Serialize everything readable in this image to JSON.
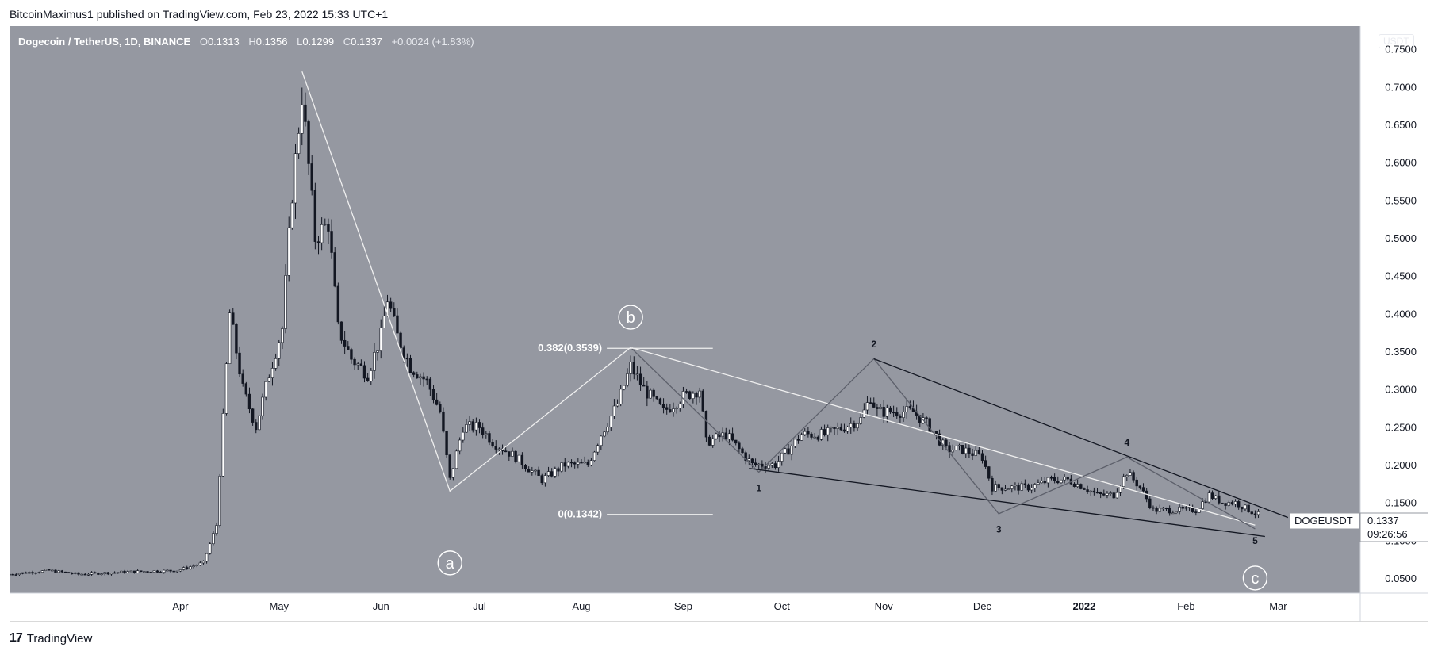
{
  "header": {
    "published_by": "BitcoinMaximus1 published on TradingView.com, Feb 23, 2022 15:33 UTC+1"
  },
  "legend": {
    "symbol": "Dogecoin / TetherUS, 1D, BINANCE",
    "open_label": "O",
    "open": "0.1313",
    "high_label": "H",
    "high": "0.1356",
    "low_label": "L",
    "low": "0.1299",
    "close_label": "C",
    "close": "0.1337",
    "change": "+0.0024 (+1.83%)"
  },
  "currency_badge": "USDT",
  "price_tag": {
    "symbol": "DOGEUSDT",
    "price": "0.1337",
    "countdown": "09:26:56"
  },
  "branding": {
    "logo_text": "17",
    "name": "TradingView"
  },
  "colors": {
    "background": "#9598a1",
    "candle": "#131722",
    "white_line": "#f0f0f0",
    "black_line": "#131722",
    "grey_line": "#5d606b"
  },
  "chart_data": {
    "type": "candlestick",
    "title": "Dogecoin / TetherUS, 1D, BINANCE",
    "x_tick_labels": [
      "Apr",
      "May",
      "Jun",
      "Jul",
      "Aug",
      "Sep",
      "Oct",
      "Nov",
      "Dec",
      "2022",
      "Feb",
      "Mar"
    ],
    "y_tick_labels": [
      "0.7500",
      "0.7000",
      "0.6500",
      "0.6000",
      "0.5500",
      "0.5000",
      "0.4500",
      "0.4000",
      "0.3500",
      "0.3000",
      "0.2500",
      "0.2000",
      "0.1500",
      "0.1000",
      "0.0500"
    ],
    "ylim": [
      0.03,
      0.78
    ],
    "xlim": [
      "2021-02-08",
      "2022-03-26"
    ],
    "y_axis_side": "right",
    "grid": false,
    "price_path": [
      [
        "2021-02-08",
        0.055
      ],
      [
        "2021-02-20",
        0.06
      ],
      [
        "2021-03-01",
        0.055
      ],
      [
        "2021-03-15",
        0.058
      ],
      [
        "2021-03-31",
        0.06
      ],
      [
        "2021-04-08",
        0.07
      ],
      [
        "2021-04-12",
        0.12
      ],
      [
        "2021-04-16",
        0.4
      ],
      [
        "2021-04-20",
        0.3
      ],
      [
        "2021-04-24",
        0.25
      ],
      [
        "2021-04-28",
        0.32
      ],
      [
        "2021-05-02",
        0.38
      ],
      [
        "2021-05-05",
        0.56
      ],
      [
        "2021-05-08",
        0.69
      ],
      [
        "2021-05-12",
        0.5
      ],
      [
        "2021-05-16",
        0.52
      ],
      [
        "2021-05-19",
        0.38
      ],
      [
        "2021-05-23",
        0.34
      ],
      [
        "2021-05-28",
        0.32
      ],
      [
        "2021-06-01",
        0.37
      ],
      [
        "2021-06-03",
        0.42
      ],
      [
        "2021-06-06",
        0.37
      ],
      [
        "2021-06-10",
        0.33
      ],
      [
        "2021-06-15",
        0.31
      ],
      [
        "2021-06-19",
        0.27
      ],
      [
        "2021-06-22",
        0.18
      ],
      [
        "2021-06-26",
        0.25
      ],
      [
        "2021-07-01",
        0.25
      ],
      [
        "2021-07-05",
        0.23
      ],
      [
        "2021-07-12",
        0.21
      ],
      [
        "2021-07-20",
        0.18
      ],
      [
        "2021-07-27",
        0.2
      ],
      [
        "2021-08-03",
        0.2
      ],
      [
        "2021-08-07",
        0.24
      ],
      [
        "2021-08-12",
        0.28
      ],
      [
        "2021-08-16",
        0.33
      ],
      [
        "2021-08-20",
        0.3
      ],
      [
        "2021-08-26",
        0.27
      ],
      [
        "2021-09-01",
        0.29
      ],
      [
        "2021-09-06",
        0.3
      ],
      [
        "2021-09-08",
        0.23
      ],
      [
        "2021-09-14",
        0.24
      ],
      [
        "2021-09-20",
        0.21
      ],
      [
        "2021-09-22",
        0.2
      ],
      [
        "2021-09-29",
        0.2
      ],
      [
        "2021-10-03",
        0.22
      ],
      [
        "2021-10-07",
        0.24
      ],
      [
        "2021-10-14",
        0.24
      ],
      [
        "2021-10-20",
        0.25
      ],
      [
        "2021-10-25",
        0.26
      ],
      [
        "2021-10-28",
        0.29
      ],
      [
        "2021-10-30",
        0.27
      ],
      [
        "2021-11-05",
        0.27
      ],
      [
        "2021-11-10",
        0.27
      ],
      [
        "2021-11-15",
        0.25
      ],
      [
        "2021-11-20",
        0.22
      ],
      [
        "2021-11-25",
        0.22
      ],
      [
        "2021-12-01",
        0.21
      ],
      [
        "2021-12-04",
        0.17
      ],
      [
        "2021-12-08",
        0.17
      ],
      [
        "2021-12-15",
        0.17
      ],
      [
        "2021-12-22",
        0.18
      ],
      [
        "2021-12-27",
        0.18
      ],
      [
        "2022-01-01",
        0.17
      ],
      [
        "2022-01-05",
        0.16
      ],
      [
        "2022-01-10",
        0.16
      ],
      [
        "2022-01-14",
        0.19
      ],
      [
        "2022-01-18",
        0.17
      ],
      [
        "2022-01-22",
        0.14
      ],
      [
        "2022-01-28",
        0.14
      ],
      [
        "2022-02-04",
        0.14
      ],
      [
        "2022-02-08",
        0.16
      ],
      [
        "2022-02-12",
        0.15
      ],
      [
        "2022-02-16",
        0.15
      ],
      [
        "2022-02-20",
        0.14
      ],
      [
        "2022-02-23",
        0.1337
      ]
    ],
    "annotations": {
      "fib_levels": [
        {
          "label": "0.382(0.3539)",
          "value": 0.3539
        },
        {
          "label": "0(0.1342)",
          "value": 0.1342
        }
      ],
      "circled_wave_labels": [
        "a",
        "b",
        "c"
      ],
      "wave_numbers": [
        "1",
        "2",
        "3",
        "4",
        "5"
      ],
      "abc_line": [
        [
          "2021-05-08",
          0.72
        ],
        [
          "2021-06-22",
          0.165
        ],
        [
          "2021-08-16",
          0.355
        ],
        [
          "2022-02-22",
          0.12
        ]
      ],
      "wave_line": [
        [
          "2021-08-16",
          0.355
        ],
        [
          "2021-09-24",
          0.19
        ],
        [
          "2021-10-29",
          0.34
        ],
        [
          "2021-12-06",
          0.135
        ],
        [
          "2022-01-14",
          0.21
        ],
        [
          "2022-02-22",
          0.115
        ]
      ],
      "upper_trendline": [
        [
          "2021-10-29",
          0.34
        ],
        [
          "2022-03-04",
          0.13
        ]
      ],
      "lower_trendline": [
        [
          "2021-09-21",
          0.195
        ],
        [
          "2022-02-25",
          0.105
        ]
      ]
    }
  }
}
